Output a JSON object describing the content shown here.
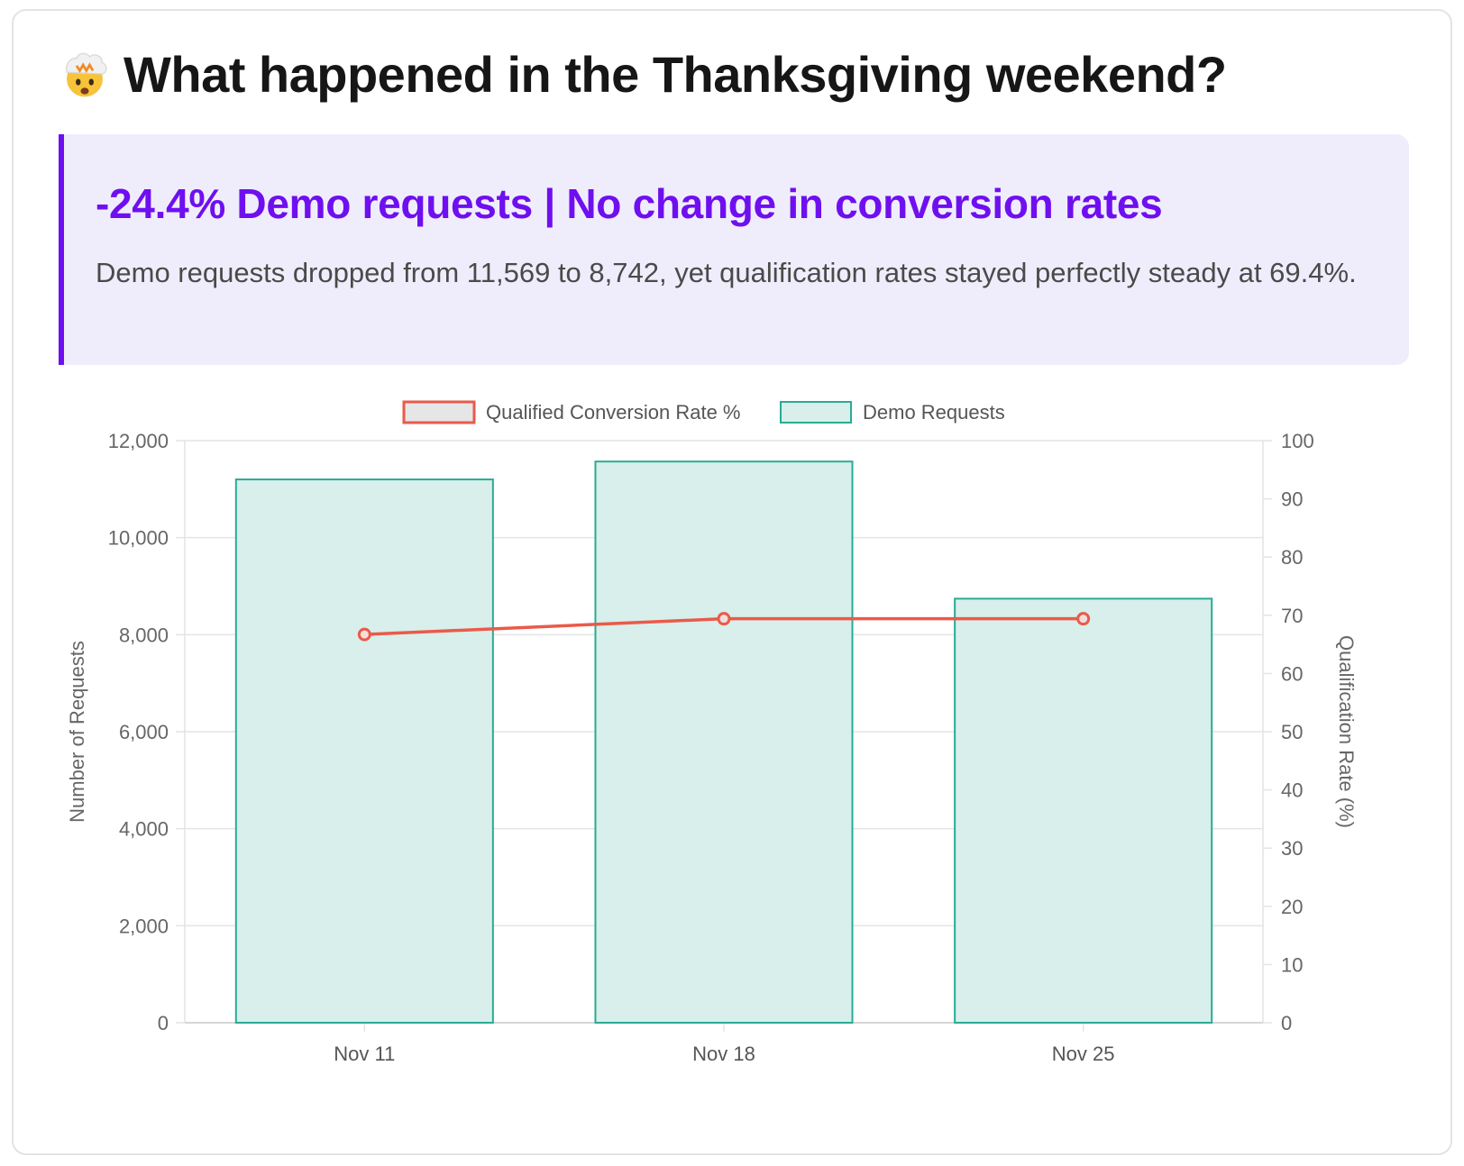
{
  "header": {
    "emoji": "exploding-head-icon",
    "title": "What happened in the Thanksgiving weekend?"
  },
  "callout": {
    "headline": "-24.4% Demo requests | No change in conversion rates",
    "summary": "Demo requests dropped from 11,569 to 8,742, yet qualification rates stayed perfectly steady at 69.4%."
  },
  "colors": {
    "accent": "#6f0ff0",
    "callout_bg": "#efedfb",
    "bar_fill": "#d8efeb",
    "bar_stroke": "#2aab94",
    "line": "#ea5a4a"
  },
  "chart_data": {
    "type": "bar",
    "categories": [
      "Nov 11",
      "Nov 18",
      "Nov 25"
    ],
    "series": [
      {
        "name": "Demo Requests",
        "type": "bar",
        "axis": "left",
        "values": [
          11200,
          11569,
          8742
        ]
      },
      {
        "name": "Qualified Conversion Rate %",
        "type": "line",
        "axis": "right",
        "values": [
          66.7,
          69.4,
          69.4
        ]
      }
    ],
    "legend_position": "top-center",
    "y_left": {
      "label": "Number of Requests",
      "ylim": [
        0,
        12000
      ],
      "ticks": [
        "12,000",
        "10,000",
        "8,000",
        "6,000",
        "4,000",
        "2,000",
        "0"
      ]
    },
    "y_right": {
      "label": "Qualification Rate (%)",
      "ylim": [
        0,
        100
      ],
      "ticks": [
        "100",
        "90",
        "80",
        "70",
        "60",
        "50",
        "40",
        "30",
        "20",
        "10",
        "0"
      ]
    },
    "grid": true
  }
}
